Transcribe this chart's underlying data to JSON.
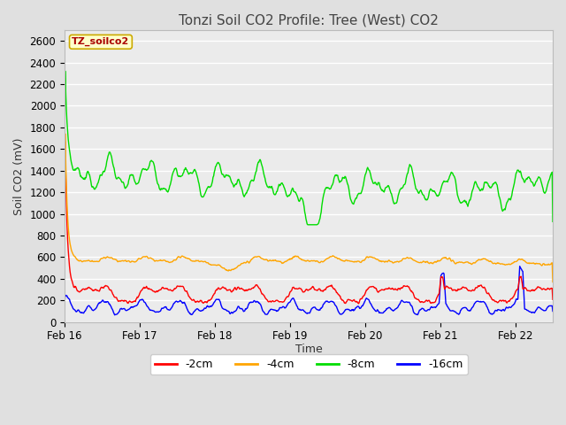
{
  "title": "Tonzi Soil CO2 Profile: Tree (West) CO2",
  "ylabel": "Soil CO2 (mV)",
  "xlabel": "Time",
  "ylim": [
    0,
    2700
  ],
  "yticks": [
    0,
    200,
    400,
    600,
    800,
    1000,
    1200,
    1400,
    1600,
    1800,
    2000,
    2200,
    2400,
    2600
  ],
  "xtick_labels": [
    "Feb 16",
    "Feb 17",
    "Feb 18",
    "Feb 19",
    "Feb 20",
    "Feb 21",
    "Feb 22"
  ],
  "colors": {
    "2cm": "#ff0000",
    "4cm": "#ffa500",
    "8cm": "#00dd00",
    "16cm": "#0000ff"
  },
  "legend_labels": [
    "-2cm",
    "-4cm",
    "-8cm",
    "-16cm"
  ],
  "legend_colors": [
    "#ff0000",
    "#ffa500",
    "#00dd00",
    "#0000ff"
  ],
  "watermark_text": "TZ_soilco2",
  "watermark_bg": "#ffffcc",
  "watermark_border": "#ccaa00",
  "watermark_text_color": "#aa0000",
  "background_color": "#e0e0e0",
  "plot_bg_color": "#ebebeb",
  "title_color": "#444444",
  "grid_color": "#ffffff",
  "n_points": 800
}
